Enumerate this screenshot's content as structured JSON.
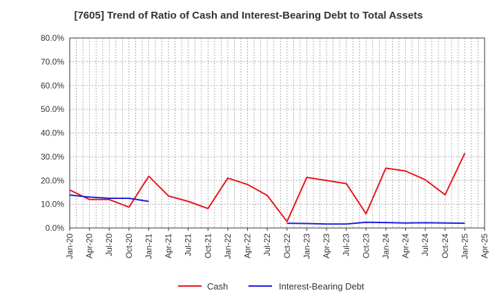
{
  "chart_data": {
    "type": "line",
    "title": "[7605]  Trend of Ratio of Cash and Interest-Bearing Debt to Total Assets",
    "xlabel": "",
    "ylabel": "",
    "ylim": [
      0,
      80
    ],
    "y_ticks": [
      "0.0%",
      "10.0%",
      "20.0%",
      "30.0%",
      "40.0%",
      "50.0%",
      "60.0%",
      "70.0%",
      "80.0%"
    ],
    "x_ticks": [
      "Jan-20",
      "Apr-20",
      "Jul-20",
      "Oct-20",
      "Jan-21",
      "Apr-21",
      "Jul-21",
      "Oct-21",
      "Jan-22",
      "Apr-22",
      "Jul-22",
      "Oct-22",
      "Jan-23",
      "Apr-23",
      "Jul-23",
      "Oct-23",
      "Jan-24",
      "Apr-24",
      "Jul-24",
      "Oct-24",
      "Jan-25",
      "Apr-25"
    ],
    "grid": true,
    "legend_position": "bottom",
    "series": [
      {
        "name": "Cash",
        "color": "#e8141b",
        "values": [
          16.0,
          12.0,
          12.0,
          8.8,
          21.8,
          13.5,
          11.2,
          8.2,
          21.0,
          18.3,
          13.7,
          2.7,
          21.3,
          20.0,
          18.7,
          6.0,
          25.2,
          24.0,
          20.3,
          14.0,
          31.5,
          null
        ]
      },
      {
        "name": "Interest-Bearing Debt",
        "color": "#1c1ce0",
        "values": [
          13.9,
          13.0,
          12.5,
          12.5,
          11.2,
          null,
          null,
          null,
          null,
          null,
          null,
          2.0,
          1.9,
          1.7,
          1.7,
          2.4,
          2.3,
          2.1,
          2.2,
          2.1,
          2.0,
          null
        ]
      }
    ]
  }
}
